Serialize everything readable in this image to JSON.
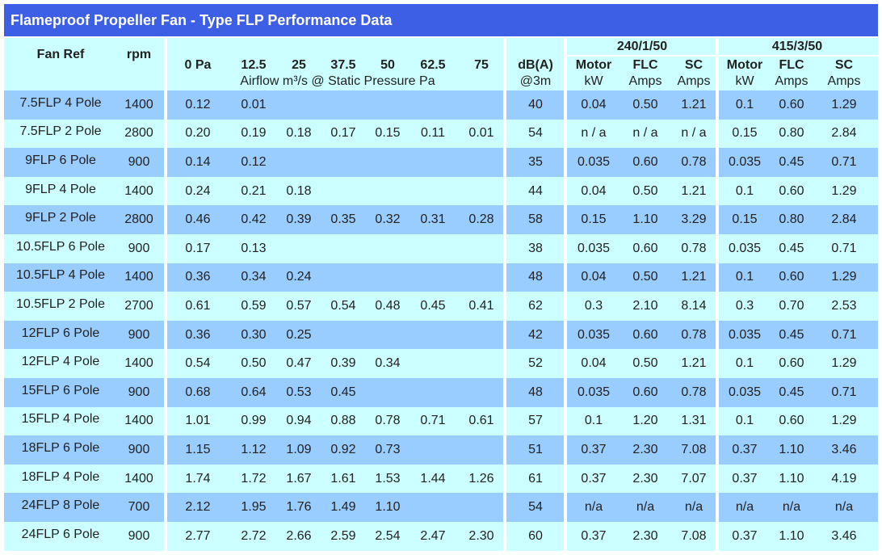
{
  "header": {
    "title": "Flameproof Propeller Fan - Type FLP Performance Data"
  },
  "columns": {
    "fan_ref": "Fan Ref",
    "rpm": "rpm",
    "pressures": [
      "0 Pa",
      "12.5",
      "25",
      "37.5",
      "50",
      "62.5",
      "75"
    ],
    "airflow_caption": "Airflow m³/s @ Static Pressure Pa",
    "dba": "dB(A)",
    "dba_sub": "@3m",
    "groups": [
      {
        "label": "240/1/50",
        "heads": [
          [
            "Motor",
            "kW"
          ],
          [
            "FLC",
            "Amps"
          ],
          [
            "SC",
            "Amps"
          ]
        ]
      },
      {
        "label": "415/3/50",
        "heads": [
          [
            "Motor",
            "kW"
          ],
          [
            "FLC",
            "Amps"
          ],
          [
            "SC",
            "Amps"
          ]
        ]
      }
    ]
  },
  "rows": [
    {
      "fan_ref": "7.5FLP 4 Pole",
      "rpm": "1400",
      "airflow": [
        "0.12",
        "0.01"
      ],
      "dba": "40",
      "v240": [
        "0.04",
        "0.50",
        "1.21"
      ],
      "v415": [
        "0.1",
        "0.60",
        "1.29"
      ]
    },
    {
      "fan_ref": "7.5FLP 2 Pole",
      "rpm": "2800",
      "airflow": [
        "0.20",
        "0.19",
        "0.18",
        "0.17",
        "0.15",
        "0.11",
        "0.01"
      ],
      "dba": "54",
      "v240": [
        "n / a",
        "n / a",
        "n / a"
      ],
      "v415": [
        "0.15",
        "0.80",
        "2.84"
      ]
    },
    {
      "fan_ref": "9FLP 6 Pole",
      "rpm": "900",
      "airflow": [
        "0.14",
        "0.12"
      ],
      "dba": "35",
      "v240": [
        "0.035",
        "0.60",
        "0.78"
      ],
      "v415": [
        "0.035",
        "0.45",
        "0.71"
      ]
    },
    {
      "fan_ref": "9FLP 4 Pole",
      "rpm": "1400",
      "airflow": [
        "0.24",
        "0.21",
        "0.18"
      ],
      "dba": "44",
      "v240": [
        "0.04",
        "0.50",
        "1.21"
      ],
      "v415": [
        "0.1",
        "0.60",
        "1.29"
      ]
    },
    {
      "fan_ref": "9FLP 2 Pole",
      "rpm": "2800",
      "airflow": [
        "0.46",
        "0.42",
        "0.39",
        "0.35",
        "0.32",
        "0.31",
        "0.28"
      ],
      "dba": "58",
      "v240": [
        "0.15",
        "1.10",
        "3.29"
      ],
      "v415": [
        "0.15",
        "0.80",
        "2.84"
      ]
    },
    {
      "fan_ref": "10.5FLP 6 Pole",
      "rpm": "900",
      "airflow": [
        "0.17",
        "0.13"
      ],
      "dba": "38",
      "v240": [
        "0.035",
        "0.60",
        "0.78"
      ],
      "v415": [
        "0.035",
        "0.45",
        "0.71"
      ]
    },
    {
      "fan_ref": "10.5FLP 4 Pole",
      "rpm": "1400",
      "airflow": [
        "0.36",
        "0.34",
        "0.24"
      ],
      "dba": "48",
      "v240": [
        "0.04",
        "0.50",
        "1.21"
      ],
      "v415": [
        "0.1",
        "0.60",
        "1.29"
      ]
    },
    {
      "fan_ref": "10.5FLP 2 Pole",
      "rpm": "2700",
      "airflow": [
        "0.61",
        "0.59",
        "0.57",
        "0.54",
        "0.48",
        "0.45",
        "0.41"
      ],
      "dba": "62",
      "v240": [
        "0.3",
        "2.10",
        "8.14"
      ],
      "v415": [
        "0.3",
        "0.70",
        "2.53"
      ]
    },
    {
      "fan_ref": "12FLP 6 Pole",
      "rpm": "900",
      "airflow": [
        "0.36",
        "0.30",
        "0.25"
      ],
      "dba": "42",
      "v240": [
        "0.035",
        "0.60",
        "0.78"
      ],
      "v415": [
        "0.035",
        "0.45",
        "0.71"
      ]
    },
    {
      "fan_ref": "12FLP 4 Pole",
      "rpm": "1400",
      "airflow": [
        "0.54",
        "0.50",
        "0.47",
        "0.39",
        "0.34"
      ],
      "dba": "52",
      "v240": [
        "0.04",
        "0.50",
        "1.21"
      ],
      "v415": [
        "0.1",
        "0.60",
        "1.29"
      ]
    },
    {
      "fan_ref": "15FLP 6 Pole",
      "rpm": "900",
      "airflow": [
        "0.68",
        "0.64",
        "0.53",
        "0.45"
      ],
      "dba": "48",
      "v240": [
        "0.035",
        "0.60",
        "0.78"
      ],
      "v415": [
        "0.035",
        "0.45",
        "0.71"
      ]
    },
    {
      "fan_ref": "15FLP 4 Pole",
      "rpm": "1400",
      "airflow": [
        "1.01",
        "0.99",
        "0.94",
        "0.88",
        "0.78",
        "0.71",
        "0.61"
      ],
      "dba": "57",
      "v240": [
        "0.1",
        "1.20",
        "1.31"
      ],
      "v415": [
        "0.1",
        "0.60",
        "1.29"
      ]
    },
    {
      "fan_ref": "18FLP 6 Pole",
      "rpm": "900",
      "airflow": [
        "1.15",
        "1.12",
        "1.09",
        "0.92",
        "0.73"
      ],
      "dba": "51",
      "v240": [
        "0.37",
        "2.30",
        "7.08"
      ],
      "v415": [
        "0.37",
        "1.10",
        "3.46"
      ]
    },
    {
      "fan_ref": "18FLP 4 Pole",
      "rpm": "1400",
      "airflow": [
        "1.74",
        "1.72",
        "1.67",
        "1.61",
        "1.53",
        "1.44",
        "1.26"
      ],
      "dba": "61",
      "v240": [
        "0.37",
        "2.30",
        "7.07"
      ],
      "v415": [
        "0.37",
        "1.10",
        "4.19"
      ]
    },
    {
      "fan_ref": "24FLP 8 Pole",
      "rpm": "700",
      "airflow": [
        "2.12",
        "1.95",
        "1.76",
        "1.49",
        "1.10"
      ],
      "dba": "54",
      "v240": [
        "n/a",
        "n/a",
        "n/a"
      ],
      "v415": [
        "n/a",
        "n/a",
        "n/a"
      ]
    },
    {
      "fan_ref": "24FLP 6 Pole",
      "rpm": "900",
      "airflow": [
        "2.77",
        "2.72",
        "2.66",
        "2.59",
        "2.54",
        "2.47",
        "2.30"
      ],
      "dba": "60",
      "v240": [
        "0.37",
        "2.30",
        "7.08"
      ],
      "v415": [
        "0.37",
        "1.10",
        "3.46"
      ]
    }
  ]
}
